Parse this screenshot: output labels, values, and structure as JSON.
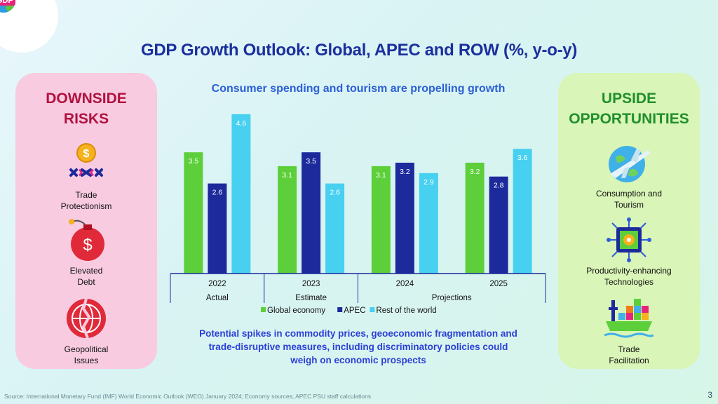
{
  "logo": {
    "label": "GDP"
  },
  "title": "GDP Growth Outlook: Global, APEC and ROW (%, y-o-y)",
  "left_panel": {
    "title_lines": [
      "DOWNSIDE",
      "RISKS"
    ],
    "items": [
      {
        "label_lines": [
          "Trade",
          "Protectionism"
        ],
        "icon": "trade-protectionism-icon"
      },
      {
        "label_lines": [
          "Elevated",
          "Debt"
        ],
        "icon": "debt-bomb-icon"
      },
      {
        "label_lines": [
          "Geopolitical",
          "Issues"
        ],
        "icon": "broken-globe-icon"
      }
    ]
  },
  "right_panel": {
    "title_lines": [
      "UPSIDE",
      "OPPORTUNITIES"
    ],
    "items": [
      {
        "label_lines": [
          "Consumption and",
          "Tourism"
        ],
        "icon": "airplane-globe-icon"
      },
      {
        "label_lines": [
          "Productivity-enhancing",
          "Technologies"
        ],
        "icon": "chip-icon"
      },
      {
        "label_lines": [
          "Trade",
          "Facilitation"
        ],
        "icon": "container-ship-icon"
      }
    ]
  },
  "subtitle": "Consumer spending and tourism are propelling growth",
  "chart_data": {
    "type": "bar",
    "categories": [
      "2022",
      "2023",
      "2024",
      "2025"
    ],
    "category_groups": [
      {
        "label": "Actual",
        "categories": [
          "2022"
        ]
      },
      {
        "label": "Estimate",
        "categories": [
          "2023"
        ]
      },
      {
        "label": "Projections",
        "categories": [
          "2024",
          "2025"
        ]
      }
    ],
    "series": [
      {
        "name": "Global economy",
        "values": [
          3.5,
          3.1,
          3.1,
          3.2
        ],
        "color": "#5ccf3a"
      },
      {
        "name": "APEC",
        "values": [
          2.6,
          3.5,
          3.2,
          2.8
        ],
        "color": "#1c2a9c"
      },
      {
        "name": "Rest of the world",
        "values": [
          4.6,
          2.6,
          2.9,
          3.6
        ],
        "color": "#47d0f0"
      }
    ],
    "ylim": [
      0,
      4.9
    ],
    "title": "",
    "xlabel": "",
    "ylabel": "",
    "legend": "bottom"
  },
  "note_lines": [
    "Potential spikes in commodity prices, geoeconomic fragmentation and",
    "trade-disruptive measures, including discriminatory policies could",
    "weigh on economic prospects"
  ],
  "source": "Source: International Monetary Fund (IMF) World Economic Outlook (WEO) January 2024; Economy sources; APEC PSU staff calculations",
  "page_number": "3"
}
